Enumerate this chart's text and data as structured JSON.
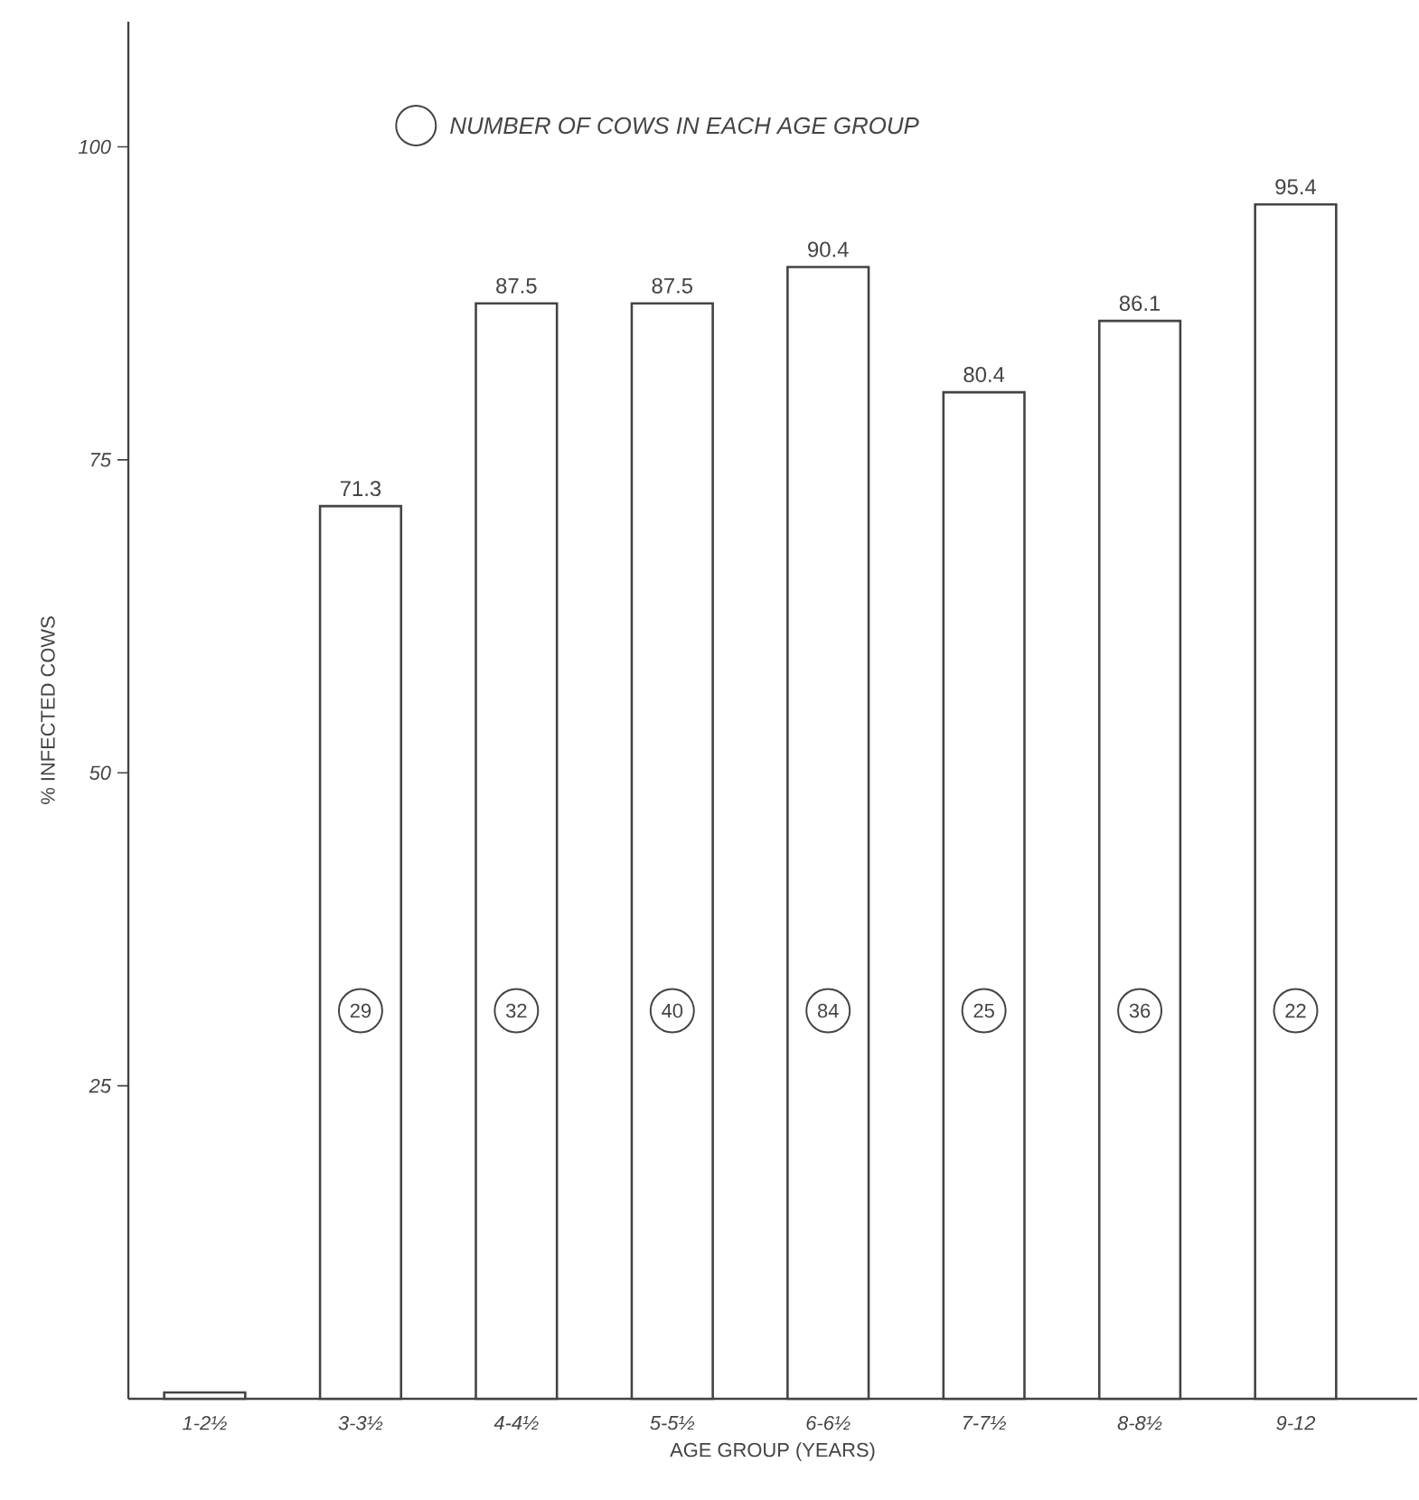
{
  "chart_data": {
    "type": "bar",
    "xlabel": "AGE GROUP (YEARS)",
    "ylabel": "% INFECTED COWS",
    "categories": [
      "1-2½",
      "3-3½",
      "4-4½",
      "5-5½",
      "6-6½",
      "7-7½",
      "8-8½",
      "9-12"
    ],
    "values": [
      0.5,
      71.3,
      87.5,
      87.5,
      90.4,
      80.4,
      86.1,
      95.4
    ],
    "value_labels": [
      null,
      "71.3",
      "87.5",
      "87.5",
      "90.4",
      "80.4",
      "86.1",
      "95.4"
    ],
    "color": "#444444",
    "ylim": [
      0,
      110
    ],
    "yticks": [
      25,
      50,
      75,
      100
    ],
    "grid": false,
    "annotations": [
      "NUMBER OF COWS IN EACH AGE GROUP",
      {
        "text": "29",
        "x": "3-3½",
        "y": 31
      },
      {
        "text": "32",
        "x": "4-4½",
        "y": 31
      },
      {
        "text": "40",
        "x": "5-5½",
        "y": 31
      },
      {
        "text": "84",
        "x": "6-6½",
        "y": 31
      },
      {
        "text": "25",
        "x": "7-7½",
        "y": 31
      },
      {
        "text": "36",
        "x": "8-8½",
        "y": 31
      },
      {
        "text": "22",
        "x": "9-12",
        "y": 31
      }
    ]
  }
}
